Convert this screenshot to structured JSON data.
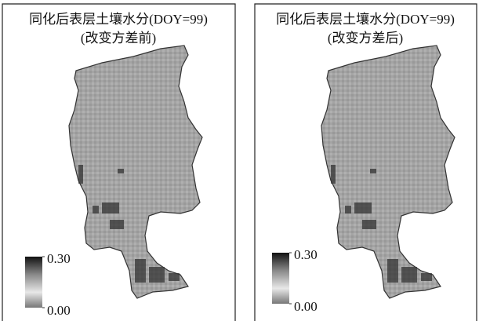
{
  "panels": [
    {
      "title": "同化后表层土壤水分(DOY=99)",
      "subtitle": "(改变方差前)",
      "colorbar": {
        "clim": [
          0,
          0.3
        ],
        "ticks": [
          {
            "value": 0.3,
            "label": "0.30"
          },
          {
            "value": 0,
            "label": "0.00"
          }
        ]
      }
    },
    {
      "title": "同化后表层土壤水分(DOY=99)",
      "subtitle": "(改变方差后)",
      "colorbar": {
        "clim": [
          0,
          0.3
        ],
        "ticks": [
          {
            "value": 0.3,
            "label": "0.30"
          },
          {
            "value": 0,
            "label": "0.00"
          }
        ]
      }
    }
  ]
}
